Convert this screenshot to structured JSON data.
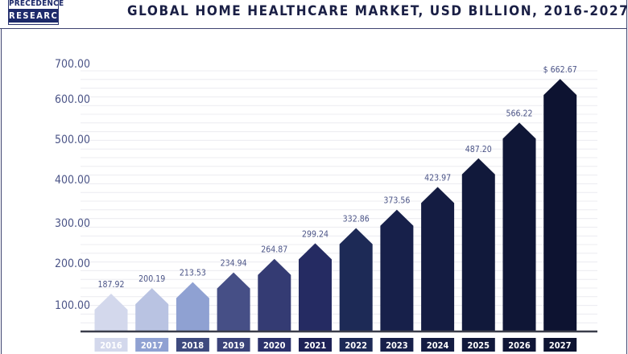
{
  "logo": {
    "line1": "PRECEDENCE",
    "line2": "RESEARCH"
  },
  "chart_data": {
    "type": "bar",
    "title": "GLOBAL HOME HEALTHCARE MARKET, USD BILLION, 2016-2027",
    "categories": [
      "2016",
      "2017",
      "2018",
      "2019",
      "2020",
      "2021",
      "2022",
      "2023",
      "2024",
      "2025",
      "2026",
      "2027"
    ],
    "values": [
      187.92,
      200.19,
      213.53,
      234.94,
      264.87,
      299.24,
      332.86,
      373.56,
      423.97,
      487.2,
      566.22,
      662.67
    ],
    "data_labels": [
      "187.92",
      "200.19",
      "213.53",
      "234.94",
      "264.87",
      "299.24",
      "332.86",
      "373.56",
      "423.97",
      "487.20",
      "566.22",
      "$ 662.67"
    ],
    "y_tick_labels": [
      "100.00",
      "200.00",
      "300.00",
      "400.00",
      "500.00",
      "600.00",
      "700.00"
    ],
    "xlabel": "",
    "ylabel": "",
    "grid": true,
    "bar_colors": [
      "#d3d8ec",
      "#b9c3e2",
      "#8fa1d2",
      "#464f86",
      "#343b73",
      "#252b62",
      "#1d2a56",
      "#17204a",
      "#141c42",
      "#11193b",
      "#0f1636",
      "#0d1331"
    ],
    "year_box_colors": [
      "#d3d8ec",
      "#8fa1d2",
      "#3e4a7e",
      "#3a4279",
      "#2b316b",
      "#1d2156",
      "#1d2a56",
      "#17204a",
      "#141c42",
      "#11193b",
      "#0f1636",
      "#0d1331"
    ],
    "label_color": "#4b5487"
  }
}
